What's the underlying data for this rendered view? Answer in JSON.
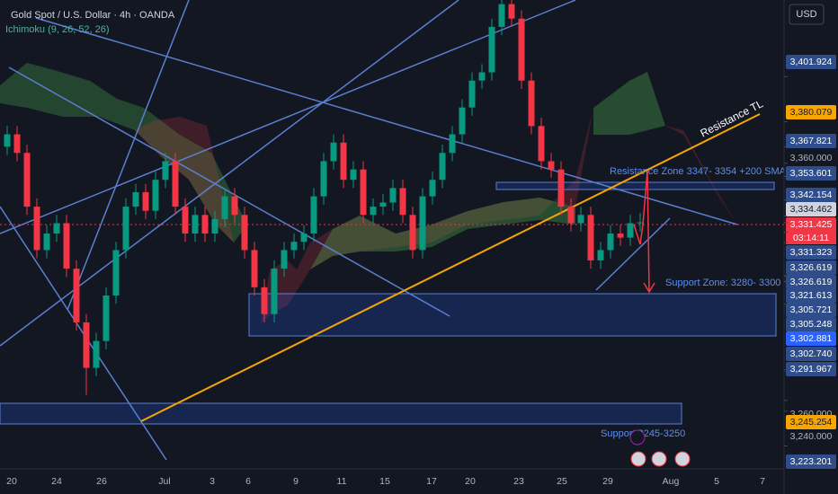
{
  "chart_data": {
    "type": "candlestick",
    "title": "Gold Spot / U.S. Dollar · 4h · OANDA",
    "indicator": "Ichimoku (9, 26, 52, 26)",
    "currency": "USD",
    "countdown": "03:14:11",
    "annotations": {
      "resistance_tl": "Resistance TL",
      "resistance_zone": "Resistance Zone 3347- 3354 +200 SMA",
      "support_zone": "Support Zone: 3280- 3300",
      "support_low": "Support 3245-3250"
    },
    "up_color": "#089981",
    "down_color": "#f23645",
    "ylim": [
      3213,
      3439
    ],
    "open": [
      3368,
      3374,
      3365,
      3339,
      3318,
      3326,
      3331,
      3309,
      3283,
      3261,
      3274,
      3296,
      3318,
      3339,
      3346,
      3337,
      3352,
      3361,
      3339,
      3326,
      3335,
      3326,
      3333,
      3344,
      3335,
      3318,
      3300,
      3287,
      3309,
      3318,
      3322,
      3326,
      3344,
      3361,
      3370,
      3352,
      3357,
      3335,
      3339,
      3341,
      3348,
      3335,
      3318,
      3344,
      3352,
      3365,
      3374,
      3387,
      3400,
      3404,
      3426,
      3437,
      3430,
      3400,
      3378,
      3361,
      3357,
      3339,
      3331,
      3335,
      3313,
      3318,
      3326,
      3324,
      3331
    ],
    "high": [
      3378,
      3378,
      3369,
      3343,
      3330,
      3335,
      3335,
      3313,
      3287,
      3278,
      3300,
      3322,
      3343,
      3350,
      3350,
      3356,
      3365,
      3365,
      3343,
      3339,
      3339,
      3337,
      3348,
      3348,
      3339,
      3322,
      3304,
      3313,
      3322,
      3326,
      3330,
      3348,
      3365,
      3374,
      3374,
      3361,
      3361,
      3343,
      3345,
      3352,
      3352,
      3339,
      3348,
      3356,
      3369,
      3378,
      3391,
      3404,
      3408,
      3430,
      3439,
      3439,
      3434,
      3404,
      3382,
      3365,
      3361,
      3343,
      3339,
      3339,
      3322,
      3330,
      3330,
      3335,
      3336
    ],
    "low": [
      3364,
      3361,
      3335,
      3314,
      3314,
      3322,
      3305,
      3279,
      3248,
      3257,
      3270,
      3292,
      3314,
      3335,
      3333,
      3333,
      3348,
      3335,
      3322,
      3322,
      3322,
      3322,
      3329,
      3331,
      3314,
      3296,
      3283,
      3283,
      3305,
      3314,
      3318,
      3322,
      3340,
      3357,
      3348,
      3348,
      3331,
      3331,
      3335,
      3337,
      3331,
      3314,
      3314,
      3340,
      3348,
      3361,
      3370,
      3383,
      3396,
      3400,
      3422,
      3426,
      3396,
      3374,
      3357,
      3353,
      3335,
      3327,
      3327,
      3309,
      3309,
      3314,
      3320,
      3320,
      3327
    ],
    "close": [
      3374,
      3365,
      3339,
      3318,
      3326,
      3331,
      3309,
      3283,
      3261,
      3274,
      3296,
      3318,
      3339,
      3346,
      3337,
      3352,
      3361,
      3339,
      3326,
      3335,
      3326,
      3333,
      3344,
      3335,
      3318,
      3300,
      3287,
      3309,
      3318,
      3322,
      3326,
      3344,
      3361,
      3370,
      3352,
      3357,
      3335,
      3339,
      3341,
      3348,
      3335,
      3318,
      3344,
      3352,
      3365,
      3374,
      3387,
      3400,
      3404,
      3426,
      3437,
      3430,
      3400,
      3378,
      3361,
      3357,
      3339,
      3331,
      3335,
      3313,
      3318,
      3326,
      3324,
      3331,
      3331.4
    ],
    "x_axis_labels": [
      "20",
      "24",
      "26",
      "Jul",
      "3",
      "6",
      "9",
      "11",
      "15",
      "17",
      "20",
      "23",
      "25",
      "29",
      "Aug",
      "5",
      "7"
    ],
    "price_labels": [
      {
        "value": 3401.924,
        "label": "3,401.924",
        "color": "#2f4d8a"
      },
      {
        "value": 3380.079,
        "label": "3,380.079",
        "color": "#f7a600"
      },
      {
        "value": 3367.821,
        "label": "3,367.821",
        "color": "#2f4d8a"
      },
      {
        "value": 3360,
        "label": "3,360.000"
      },
      {
        "value": 3353.601,
        "label": "3,353.601",
        "color": "#2f4d8a"
      },
      {
        "value": 3342.154,
        "label": "3,342.154",
        "color": "#2f4d8a"
      },
      {
        "value": 3334.462,
        "label": "3,334.462",
        "color": "#d1d4dc"
      },
      {
        "value": 3331.425,
        "label": "3,331.425",
        "color": "#f23645"
      },
      {
        "value": 3331.323,
        "label": "3,331.323",
        "color": "#2f4d8a"
      },
      {
        "value": 3326.619,
        "label": "3,326.619",
        "color": "#2f4d8a"
      },
      {
        "value": 3326.619,
        "label": "3,326.619",
        "color": "#2f4d8a"
      },
      {
        "value": 3321.613,
        "label": "3,321.613",
        "color": "#2f4d8a"
      },
      {
        "value": 3305.721,
        "label": "3,305.721",
        "color": "#2f4d8a"
      },
      {
        "value": 3305.248,
        "label": "3,305.248",
        "color": "#2f4d8a"
      },
      {
        "value": 3302.881,
        "label": "3,302.881",
        "color": "#2962ff"
      },
      {
        "value": 3302.74,
        "label": "3,302.740",
        "color": "#2f4d8a"
      },
      {
        "value": 3291.967,
        "label": "3,291.967",
        "color": "#2f4d8a"
      },
      {
        "value": 3260,
        "label": "3,260.000"
      },
      {
        "value": 3245.254,
        "label": "3,245.254",
        "color": "#f7a600"
      },
      {
        "value": 3240,
        "label": "3,240.000"
      },
      {
        "value": 3223.201,
        "label": "3,223.201",
        "color": "#2f4d8a"
      }
    ]
  }
}
